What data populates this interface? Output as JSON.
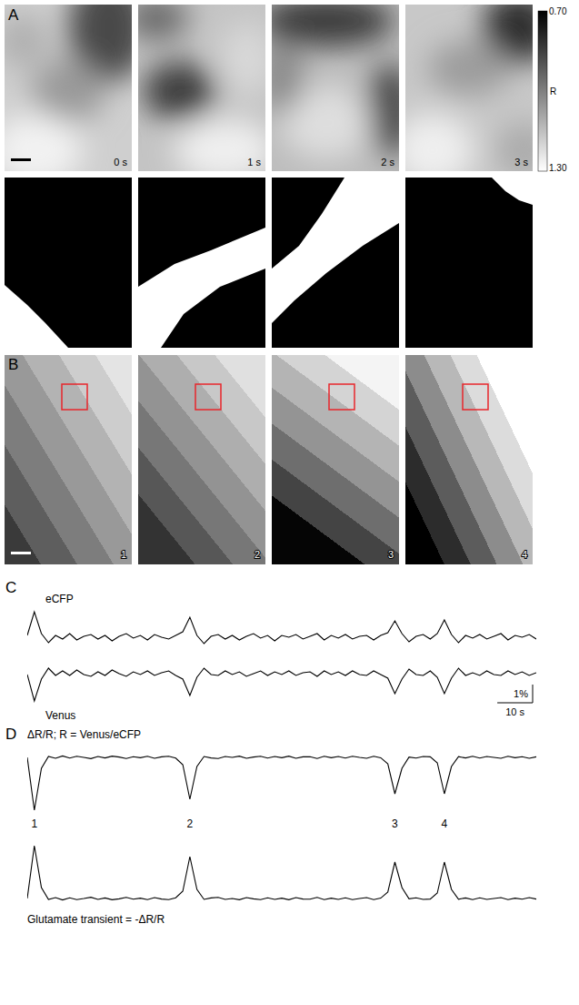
{
  "chart_data": [
    {
      "type": "line",
      "title": "eCFP",
      "color": "#000000",
      "tick_labels": false,
      "xlim": [
        0,
        144
      ],
      "ylim": [
        -0.8,
        1.6
      ],
      "x": [
        0,
        2,
        4,
        6,
        8,
        10,
        12,
        14,
        16,
        18,
        20,
        22,
        24,
        26,
        28,
        30,
        32,
        34,
        36,
        38,
        40,
        42,
        44,
        46,
        48,
        50,
        52,
        54,
        56,
        58,
        60,
        62,
        64,
        66,
        68,
        70,
        72,
        74,
        76,
        78,
        80,
        82,
        84,
        86,
        88,
        90,
        92,
        94,
        96,
        98,
        100,
        102,
        104,
        106,
        108,
        110,
        112,
        114,
        116,
        118,
        120,
        122,
        124,
        126,
        128,
        130,
        132,
        134,
        136,
        138,
        140,
        142,
        144
      ],
      "values": [
        0.1,
        1.4,
        0.2,
        -0.3,
        0.1,
        -0.1,
        0.2,
        -0.15,
        0.05,
        0.15,
        -0.1,
        0.1,
        -0.2,
        0.05,
        0.2,
        -0.05,
        0.1,
        -0.15,
        0.15,
        0,
        -0.1,
        0.1,
        0.3,
        1.1,
        0.1,
        -0.35,
        0.05,
        0.15,
        -0.1,
        0.1,
        -0.15,
        0.05,
        0.2,
        -0.05,
        0.1,
        -0.2,
        0.1,
        0,
        0.15,
        -0.1,
        0.05,
        0.2,
        -0.15,
        0.1,
        -0.05,
        0.15,
        -0.1,
        0.05,
        0.1,
        -0.15,
        0.1,
        0.25,
        0.9,
        0.2,
        -0.25,
        0.05,
        0.15,
        -0.1,
        0.2,
        0.95,
        0.15,
        -0.3,
        0.1,
        -0.05,
        0.15,
        -0.1,
        0.05,
        0.2,
        -0.15,
        0.1,
        0,
        0.15,
        -0.1
      ]
    },
    {
      "type": "line",
      "title": "Venus",
      "color": "#000000",
      "tick_labels": false,
      "xlim": [
        0,
        144
      ],
      "ylim": [
        -1.7,
        0.8
      ],
      "x": [
        0,
        2,
        4,
        6,
        8,
        10,
        12,
        14,
        16,
        18,
        20,
        22,
        24,
        26,
        28,
        30,
        32,
        34,
        36,
        38,
        40,
        42,
        44,
        46,
        48,
        50,
        52,
        54,
        56,
        58,
        60,
        62,
        64,
        66,
        68,
        70,
        72,
        74,
        76,
        78,
        80,
        82,
        84,
        86,
        88,
        90,
        92,
        94,
        96,
        98,
        100,
        102,
        104,
        106,
        108,
        110,
        112,
        114,
        116,
        118,
        120,
        122,
        124,
        126,
        128,
        130,
        132,
        134,
        136,
        138,
        140,
        142,
        144
      ],
      "values": [
        -0.05,
        -1.5,
        -0.3,
        0.3,
        -0.1,
        0.15,
        -0.1,
        0.2,
        -0.05,
        -0.15,
        0.1,
        -0.1,
        0.2,
        0,
        -0.15,
        0.1,
        -0.05,
        0.15,
        -0.1,
        0.05,
        0.15,
        -0.1,
        -0.3,
        -1.2,
        -0.2,
        0.3,
        -0.05,
        -0.1,
        0.15,
        -0.05,
        0.1,
        -0.15,
        0,
        0.15,
        -0.1,
        0.1,
        -0.05,
        0.15,
        -0.1,
        0.05,
        0.1,
        -0.15,
        0.15,
        -0.05,
        0.1,
        -0.1,
        0.15,
        -0.05,
        -0.1,
        0.15,
        -0.05,
        -0.25,
        -1.1,
        -0.3,
        0.25,
        -0.05,
        -0.1,
        0.15,
        -0.2,
        -1.1,
        -0.25,
        0.3,
        -0.1,
        0.05,
        -0.1,
        0.15,
        -0.05,
        -0.1,
        0.15,
        -0.05,
        0.1,
        -0.1,
        0.05
      ]
    },
    {
      "type": "line",
      "title": "ΔR/R; R = Venus/eCFP",
      "color": "#000000",
      "tick_labels": false,
      "xlim": [
        0,
        144
      ],
      "ylim": [
        -3.1,
        0.5
      ],
      "x": [
        0,
        2,
        4,
        6,
        8,
        10,
        12,
        14,
        16,
        18,
        20,
        22,
        24,
        26,
        28,
        30,
        32,
        34,
        36,
        38,
        40,
        42,
        44,
        46,
        48,
        50,
        52,
        54,
        56,
        58,
        60,
        62,
        64,
        66,
        68,
        70,
        72,
        74,
        76,
        78,
        80,
        82,
        84,
        86,
        88,
        90,
        92,
        94,
        96,
        98,
        100,
        102,
        104,
        106,
        108,
        110,
        112,
        114,
        116,
        118,
        120,
        122,
        124,
        126,
        128,
        130,
        132,
        134,
        136,
        138,
        140,
        142,
        144
      ],
      "values": [
        0,
        -2.9,
        -0.6,
        0.05,
        -0.05,
        0.08,
        -0.04,
        0.06,
        0,
        -0.07,
        0.05,
        -0.03,
        0.07,
        0.02,
        -0.06,
        0.04,
        -0.02,
        0.06,
        -0.05,
        0.03,
        0.06,
        -0.04,
        -0.4,
        -2.3,
        -0.5,
        0.05,
        -0.03,
        -0.06,
        0.05,
        0,
        0.07,
        -0.05,
        0.02,
        0.06,
        -0.04,
        0.05,
        -0.02,
        0.07,
        -0.05,
        0.03,
        0.04,
        -0.06,
        0.06,
        -0.02,
        0.05,
        -0.04,
        0.06,
        0,
        -0.05,
        0.06,
        -0.02,
        -0.35,
        -2,
        -0.6,
        0.02,
        -0.04,
        0.05,
        0.03,
        -0.3,
        -2,
        -0.5,
        0.04,
        -0.03,
        0.06,
        -0.04,
        0.05,
        0,
        -0.05,
        0.06,
        -0.02,
        0.04,
        -0.05,
        0.03
      ],
      "annotations": [
        {
          "x": 2,
          "text": "1"
        },
        {
          "x": 46,
          "text": "2"
        },
        {
          "x": 104,
          "text": "3"
        },
        {
          "x": 118,
          "text": "4"
        }
      ]
    },
    {
      "type": "line",
      "title": "Glutamate transient = -ΔR/R",
      "color": "#000000",
      "tick_labels": false,
      "xlim": [
        0,
        144
      ],
      "ylim": [
        -0.5,
        3.1
      ],
      "x": [
        0,
        2,
        4,
        6,
        8,
        10,
        12,
        14,
        16,
        18,
        20,
        22,
        24,
        26,
        28,
        30,
        32,
        34,
        36,
        38,
        40,
        42,
        44,
        46,
        48,
        50,
        52,
        54,
        56,
        58,
        60,
        62,
        64,
        66,
        68,
        70,
        72,
        74,
        76,
        78,
        80,
        82,
        84,
        86,
        88,
        90,
        92,
        94,
        96,
        98,
        100,
        102,
        104,
        106,
        108,
        110,
        112,
        114,
        116,
        118,
        120,
        122,
        124,
        126,
        128,
        130,
        132,
        134,
        136,
        138,
        140,
        142,
        144
      ],
      "values": [
        0,
        2.9,
        0.6,
        -0.05,
        0.05,
        -0.08,
        0.04,
        -0.06,
        0,
        0.07,
        -0.05,
        0.03,
        -0.07,
        -0.02,
        0.06,
        -0.04,
        0.02,
        -0.06,
        0.05,
        -0.03,
        -0.06,
        0.04,
        0.4,
        2.3,
        0.5,
        -0.05,
        0.03,
        0.06,
        -0.05,
        0,
        -0.07,
        0.05,
        -0.02,
        -0.06,
        0.04,
        -0.05,
        0.02,
        -0.07,
        0.05,
        -0.03,
        -0.04,
        0.06,
        -0.06,
        0.02,
        -0.05,
        0.04,
        -0.06,
        0,
        0.05,
        -0.06,
        0.02,
        0.35,
        2,
        0.6,
        -0.02,
        0.04,
        -0.05,
        -0.03,
        0.3,
        2,
        0.5,
        -0.04,
        0.03,
        -0.06,
        0.04,
        -0.05,
        0,
        0.05,
        -0.06,
        0.02,
        -0.04,
        0.05,
        -0.03
      ]
    }
  ],
  "figure": {
    "panel_labels": [
      "A",
      "B",
      "C",
      "D"
    ],
    "panel_A": {
      "time_labels": [
        "0 s",
        "1 s",
        "2 s",
        "3 s"
      ],
      "colorbar": {
        "label": "R",
        "range": [
          0.7,
          1.3
        ],
        "ticks": [
          {
            "value": 0.7,
            "label": "0.70"
          },
          {
            "value": 1.3,
            "label": "1.30"
          }
        ]
      }
    },
    "panel_B": {
      "frame_labels": [
        "1",
        "2",
        "3",
        "4"
      ],
      "roi_color": "#e8262b"
    },
    "panel_C": {
      "scale_bar": {
        "y": 1,
        "y_label": "1%",
        "x": 10,
        "x_label": "10 s"
      }
    }
  }
}
